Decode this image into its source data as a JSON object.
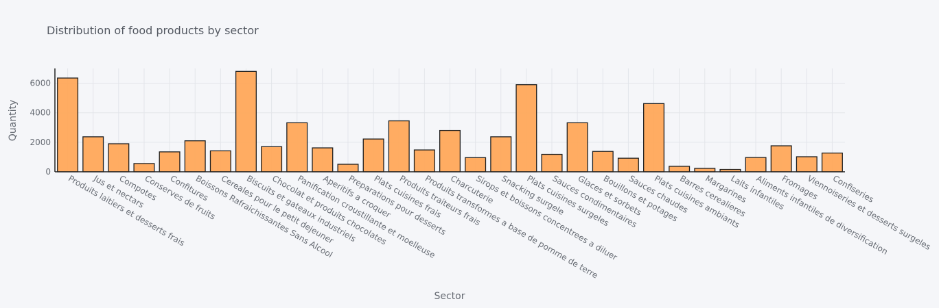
{
  "chart_data": {
    "type": "bar",
    "title": "Distribution of food products by sector",
    "xlabel": "Sector",
    "ylabel": "Quantity",
    "ylim": [
      0,
      7000
    ],
    "yticks": [
      0,
      2000,
      4000,
      6000
    ],
    "grid": true,
    "legend": "none",
    "bar_color": "#ffa85a",
    "bar_edge_color": "#1f1f1f",
    "categories": [
      "Produits laitiers et desserts frais",
      "Jus et nectars",
      "Compotes",
      "Conserves de fruits",
      "Confitures",
      "Boissons Rafraichissantes Sans Alcool",
      "Cereales pour le petit dejeuner",
      "Biscuits et gateaux industriels",
      "Chocolat et produits chocolates",
      "Panification croustillante et moelleuse",
      "Aperitifs a croquer",
      "Preparations pour desserts",
      "Plats cuisines frais",
      "Produits traiteurs frais",
      "Produits transformes a base de pomme de terre",
      "Charcuterie",
      "Sirops et boissons concentrees a diluer",
      "Snacking surgele",
      "Plats cuisines surgeles",
      "Sauces condimentaires",
      "Glaces et sorbets",
      "Bouillons et potages",
      "Sauces chaudes",
      "Plats cuisines ambiants",
      "Barres cerealieres",
      "Margarines",
      "Laits infantiles",
      "Aliments infantiles de diversification",
      "Fromages",
      "Viennoiseries et desserts surgeles",
      "Confiseries"
    ],
    "values": [
      6350,
      2370,
      1900,
      560,
      1350,
      2100,
      1420,
      6800,
      1700,
      3320,
      1620,
      510,
      2220,
      3450,
      1480,
      2800,
      960,
      2370,
      5900,
      1180,
      3320,
      1380,
      920,
      4620,
      370,
      230,
      160,
      970,
      1760,
      1020,
      1270
    ]
  }
}
